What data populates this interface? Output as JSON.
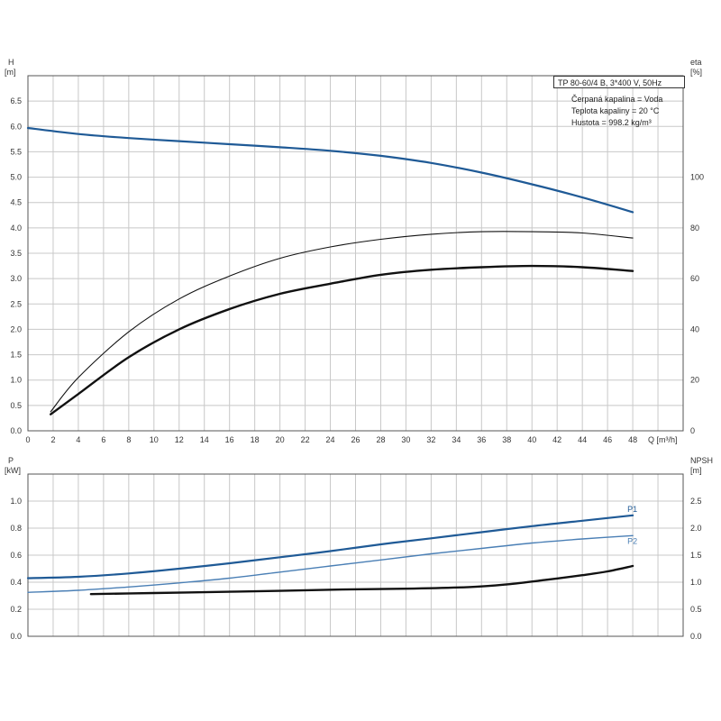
{
  "info": {
    "model": "TP 80-60/4 B, 3*400 V, 50Hz",
    "liquid": "Čerpaná kapalina = Voda",
    "temperature": "Teplota kapaliny = 20 °C",
    "density": "Hustota = 998.2 kg/m³"
  },
  "colors": {
    "grid": "#c8c8c8",
    "frame": "#555555",
    "blue": "#1f5a96",
    "blue_light": "#4a7fb5",
    "black": "#111111"
  },
  "chart_data": [
    {
      "type": "line",
      "title": "",
      "xlabel": "Q [m³/h]",
      "x_ticks": [
        "0",
        "2",
        "4",
        "6",
        "8",
        "10",
        "12",
        "14",
        "16",
        "18",
        "20",
        "22",
        "24",
        "26",
        "28",
        "30",
        "32",
        "34",
        "36",
        "38",
        "40",
        "42",
        "44",
        "46",
        "48"
      ],
      "xlim": [
        0,
        52
      ],
      "left_axis": {
        "label_top": "H",
        "label_unit": "[m]",
        "ylim": [
          0,
          7.0
        ],
        "ticks": [
          "0.0",
          "0.5",
          "1.0",
          "1.5",
          "2.0",
          "2.5",
          "3.0",
          "3.5",
          "4.0",
          "4.5",
          "5.0",
          "5.5",
          "6.0",
          "6.5"
        ]
      },
      "right_axis": {
        "label_top": "eta",
        "label_unit": "[%]",
        "ylim": [
          0,
          140
        ],
        "ticks": [
          "0",
          "20",
          "40",
          "60",
          "80",
          "100"
        ]
      },
      "grid": true,
      "series": [
        {
          "axis": "left",
          "style": "blue",
          "x": [
            0,
            4,
            8,
            12,
            16,
            20,
            24,
            28,
            32,
            36,
            40,
            44,
            48
          ],
          "y": [
            5.97,
            5.85,
            5.77,
            5.71,
            5.65,
            5.59,
            5.52,
            5.42,
            5.28,
            5.09,
            4.86,
            4.6,
            4.31
          ]
        },
        {
          "axis": "right",
          "style": "thin",
          "x": [
            1.8,
            4,
            8,
            12,
            16,
            20,
            24,
            28,
            32,
            36,
            40,
            44,
            48
          ],
          "y": [
            7.5,
            21,
            39,
            52,
            61,
            68,
            72.5,
            75.5,
            77.5,
            78.5,
            78.5,
            78,
            76
          ]
        },
        {
          "axis": "right",
          "style": "thick",
          "x": [
            1.8,
            4,
            8,
            12,
            16,
            20,
            24,
            28,
            32,
            36,
            40,
            44,
            48
          ],
          "y": [
            6.5,
            14.5,
            29,
            40,
            48,
            54,
            58,
            61.5,
            63.5,
            64.5,
            65,
            64.5,
            63
          ]
        }
      ]
    },
    {
      "type": "line",
      "title": "",
      "xlim": [
        0,
        52
      ],
      "left_axis": {
        "label_top": "P",
        "label_unit": "[kW]",
        "ylim": [
          0,
          1.2
        ],
        "ticks": [
          "0.0",
          "0.2",
          "0.4",
          "0.6",
          "0.8",
          "1.0"
        ]
      },
      "right_axis": {
        "label_top": "NPSH",
        "label_unit": "[m]",
        "ylim": [
          0,
          3.0
        ],
        "ticks": [
          "0.0",
          "0.5",
          "1.0",
          "1.5",
          "2.0",
          "2.5"
        ]
      },
      "grid": true,
      "series": [
        {
          "name": "P1",
          "axis": "left",
          "style": "blue",
          "x": [
            0,
            4,
            8,
            12,
            16,
            20,
            24,
            28,
            32,
            36,
            40,
            44,
            48
          ],
          "y": [
            0.43,
            0.44,
            0.465,
            0.5,
            0.54,
            0.585,
            0.63,
            0.68,
            0.725,
            0.77,
            0.815,
            0.855,
            0.895
          ]
        },
        {
          "name": "P2",
          "axis": "left",
          "style": "blue_light",
          "x": [
            0,
            4,
            8,
            12,
            16,
            20,
            24,
            28,
            32,
            36,
            40,
            44,
            48
          ],
          "y": [
            0.325,
            0.34,
            0.365,
            0.395,
            0.43,
            0.475,
            0.52,
            0.565,
            0.61,
            0.65,
            0.69,
            0.72,
            0.745
          ]
        },
        {
          "axis": "right",
          "style": "thick",
          "x": [
            5,
            10,
            15,
            20,
            25,
            30,
            35,
            38,
            41,
            44,
            46,
            48
          ],
          "y": [
            0.78,
            0.8,
            0.82,
            0.84,
            0.865,
            0.88,
            0.91,
            0.96,
            1.04,
            1.13,
            1.2,
            1.3
          ]
        }
      ]
    }
  ]
}
